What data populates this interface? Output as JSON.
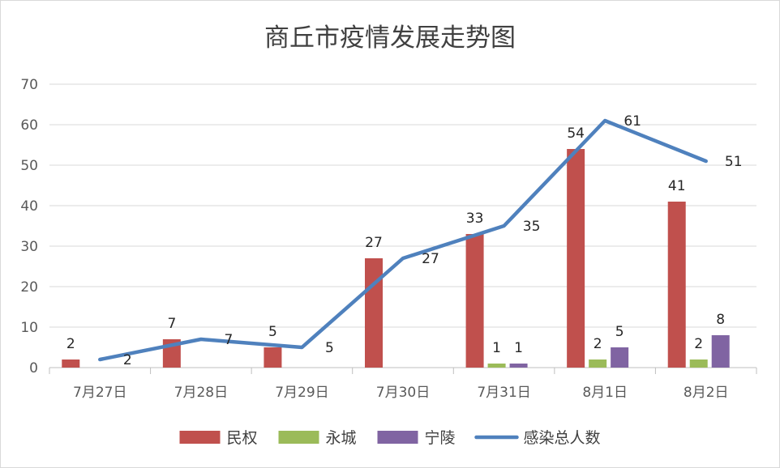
{
  "chart_data": {
    "type": "bar",
    "title": "商丘市疫情发展走势图",
    "categories": [
      "7月27日",
      "7月28日",
      "7月29日",
      "7月30日",
      "7月31日",
      "8月1日",
      "8月2日"
    ],
    "ylim": [
      0,
      70
    ],
    "yticks": [
      0,
      10,
      20,
      30,
      40,
      50,
      60,
      70
    ],
    "grid": true,
    "legend_position": "bottom",
    "series": [
      {
        "name": "民权",
        "kind": "bar",
        "color": "#c0504d",
        "values": [
          2,
          7,
          5,
          27,
          33,
          54,
          41
        ]
      },
      {
        "name": "永城",
        "kind": "bar",
        "color": "#9bbb59",
        "values": [
          null,
          null,
          null,
          null,
          1,
          2,
          2
        ]
      },
      {
        "name": "宁陵",
        "kind": "bar",
        "color": "#8064a2",
        "values": [
          null,
          null,
          null,
          null,
          1,
          5,
          8
        ]
      },
      {
        "name": "感染总人数",
        "kind": "line",
        "color": "#4f81bd",
        "values": [
          2,
          7,
          5,
          27,
          35,
          61,
          51
        ]
      }
    ]
  }
}
